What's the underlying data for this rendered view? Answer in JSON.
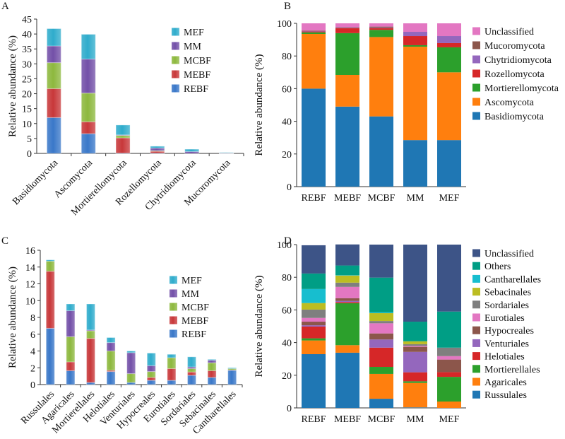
{
  "chart_data": [
    {
      "panel": "A",
      "type": "bar",
      "stacked": true,
      "style": "gradient-3d",
      "title": "",
      "xlabel": "",
      "ylabel": "Relative abundance (%)",
      "ylim": [
        0,
        45
      ],
      "yticks": [
        0,
        5,
        10,
        15,
        20,
        25,
        30,
        35,
        40,
        45
      ],
      "categories": [
        "Basidiomycota",
        "Ascomycota",
        "Mortierellomycota",
        "Rozellomycota",
        "Chytridiomycota",
        "Mucoromycota"
      ],
      "legend_position": "top-right",
      "legend_order": [
        "MEF",
        "MM",
        "MCBF",
        "MEBF",
        "REBF"
      ],
      "series": [
        {
          "name": "REBF",
          "color": "#3a78c9",
          "values": [
            12.0,
            6.6,
            0.1,
            0.1,
            0.0,
            0.05
          ]
        },
        {
          "name": "MEBF",
          "color": "#c8383a",
          "values": [
            9.7,
            4.0,
            5.1,
            0.6,
            0.0,
            0.05
          ]
        },
        {
          "name": "MCBF",
          "color": "#8db83e",
          "values": [
            8.7,
            9.6,
            0.8,
            0.2,
            0.0,
            0.05
          ]
        },
        {
          "name": "MM",
          "color": "#7350a8",
          "values": [
            5.6,
            11.4,
            0.2,
            0.9,
            0.6,
            0.05
          ]
        },
        {
          "name": "MEF",
          "color": "#2faccc",
          "values": [
            5.8,
            8.3,
            3.3,
            0.6,
            0.8,
            0.1
          ]
        }
      ]
    },
    {
      "panel": "B",
      "type": "bar",
      "stacked": true,
      "title": "",
      "xlabel": "",
      "ylabel": "Relative abundance (%)",
      "ylim": [
        0,
        100
      ],
      "yticks": [
        0,
        20,
        40,
        60,
        80,
        100
      ],
      "categories": [
        "REBF",
        "MEBF",
        "MCBF",
        "MM",
        "MEF"
      ],
      "legend_position": "right",
      "legend_order": [
        "Unclassified",
        "Mucoromycota",
        "Chytridiomycota",
        "Rozellomycota",
        "Mortierellomycota",
        "Ascomycota",
        "Basidiomycota"
      ],
      "series": [
        {
          "name": "Basidiomycota",
          "color": "#1f77b4",
          "values": [
            60.0,
            49.0,
            43.0,
            28.5,
            28.5
          ]
        },
        {
          "name": "Ascomycota",
          "color": "#ff7f0e",
          "values": [
            33.5,
            19.4,
            48.6,
            57.2,
            41.5
          ]
        },
        {
          "name": "Mortierellomycota",
          "color": "#2ca02c",
          "values": [
            1.0,
            25.6,
            4.4,
            0.9,
            15.3
          ]
        },
        {
          "name": "Rozellomycota",
          "color": "#d62728",
          "values": [
            0.5,
            3.0,
            1.0,
            5.6,
            2.6
          ]
        },
        {
          "name": "Chytridiomycota",
          "color": "#9467bd",
          "values": [
            0.3,
            0.3,
            0.3,
            2.6,
            4.3
          ]
        },
        {
          "name": "Mucoromycota",
          "color": "#8c564b",
          "values": [
            0.2,
            0.3,
            0.7,
            0.0,
            0.0
          ]
        },
        {
          "name": "Unclassified",
          "color": "#e377c2",
          "values": [
            4.5,
            2.4,
            2.0,
            5.2,
            7.8
          ]
        }
      ]
    },
    {
      "panel": "C",
      "type": "bar",
      "stacked": true,
      "style": "gradient-3d",
      "title": "",
      "xlabel": "",
      "ylabel": "Relative abundance (%)",
      "ylim": [
        0,
        16
      ],
      "yticks": [
        0,
        2,
        4,
        6,
        8,
        10,
        12,
        14,
        16
      ],
      "categories": [
        "Russulales",
        "Agaricales",
        "Mortierellales",
        "Helotiales",
        "Venturiales",
        "Hypocreales",
        "Eurotiales",
        "Sordariales",
        "Sebacinales",
        "Cantharellales"
      ],
      "legend_position": "top-right",
      "legend_order": [
        "MEF",
        "MM",
        "MCBF",
        "MEBF",
        "REBF"
      ],
      "series": [
        {
          "name": "REBF",
          "color": "#3a78c9",
          "values": [
            6.7,
            1.65,
            0.25,
            1.55,
            0.25,
            0.5,
            0.5,
            1.1,
            0.85,
            1.7
          ]
        },
        {
          "name": "MEBF",
          "color": "#c8383a",
          "values": [
            6.8,
            1.05,
            5.25,
            0.15,
            0.0,
            0.35,
            1.4,
            0.4,
            0.8,
            0.05
          ]
        },
        {
          "name": "MCBF",
          "color": "#8db83e",
          "values": [
            1.2,
            3.0,
            0.9,
            2.3,
            1.05,
            0.7,
            1.3,
            0.4,
            0.95,
            0.15
          ]
        },
        {
          "name": "MM",
          "color": "#7350a8",
          "values": [
            0.0,
            3.1,
            0.1,
            1.0,
            2.5,
            0.7,
            0.0,
            0.2,
            0.3,
            0.0
          ]
        },
        {
          "name": "MEF",
          "color": "#2faccc",
          "values": [
            0.15,
            0.8,
            3.1,
            0.6,
            0.2,
            1.5,
            0.4,
            1.2,
            0.1,
            0.1
          ]
        }
      ]
    },
    {
      "panel": "D",
      "type": "bar",
      "stacked": true,
      "title": "",
      "xlabel": "",
      "ylabel": "Relative abundance (%)",
      "ylim": [
        0,
        100
      ],
      "yticks": [
        0,
        20,
        40,
        60,
        80,
        100
      ],
      "categories": [
        "REBF",
        "MEBF",
        "MCBF",
        "MM",
        "MEF"
      ],
      "legend_position": "right",
      "legend_order": [
        "Unclassified",
        "Others",
        "Cantharellales",
        "Sebacinales",
        "Sordariales",
        "Eurotiales",
        "Hypocreales",
        "Venturiales",
        "Helotiales",
        "Mortierellales",
        "Agaricales",
        "Russulales"
      ],
      "series": [
        {
          "name": "Russulales",
          "color": "#1f77b4",
          "values": [
            32.9,
            33.8,
            5.6,
            0.3,
            0.0
          ]
        },
        {
          "name": "Agaricales",
          "color": "#ff7f0e",
          "values": [
            8.4,
            4.6,
            15.2,
            15.0,
            3.9
          ]
        },
        {
          "name": "Mortierellales",
          "color": "#2ca02c",
          "values": [
            1.3,
            25.7,
            4.3,
            1.0,
            15.1
          ]
        },
        {
          "name": "Helotiales",
          "color": "#d62728",
          "values": [
            7.2,
            0.7,
            11.8,
            5.5,
            2.9
          ]
        },
        {
          "name": "Venturiales",
          "color": "#9467bd",
          "values": [
            0.8,
            0.7,
            5.0,
            12.5,
            0.0
          ]
        },
        {
          "name": "Hypocreales",
          "color": "#8c564b",
          "values": [
            2.2,
            1.7,
            3.7,
            3.1,
            7.7
          ]
        },
        {
          "name": "Eurotiales",
          "color": "#e377c2",
          "values": [
            2.3,
            6.9,
            6.2,
            0.6,
            2.1
          ]
        },
        {
          "name": "Sordariales",
          "color": "#7f7f7f",
          "values": [
            5.1,
            2.6,
            1.4,
            1.0,
            5.2
          ]
        },
        {
          "name": "Sebacinales",
          "color": "#bcbd22",
          "values": [
            4.0,
            4.4,
            4.8,
            1.8,
            0.0
          ]
        },
        {
          "name": "Cantharellales",
          "color": "#17becf",
          "values": [
            8.6,
            0.2,
            0.6,
            0.0,
            0.0
          ]
        },
        {
          "name": "Others",
          "color": "#009e85",
          "values": [
            9.5,
            5.9,
            21.2,
            12.0,
            22.1
          ]
        },
        {
          "name": "Unclassified",
          "color": "#3d5487",
          "values": [
            17.3,
            12.9,
            20.2,
            47.2,
            41.0
          ]
        }
      ]
    }
  ]
}
